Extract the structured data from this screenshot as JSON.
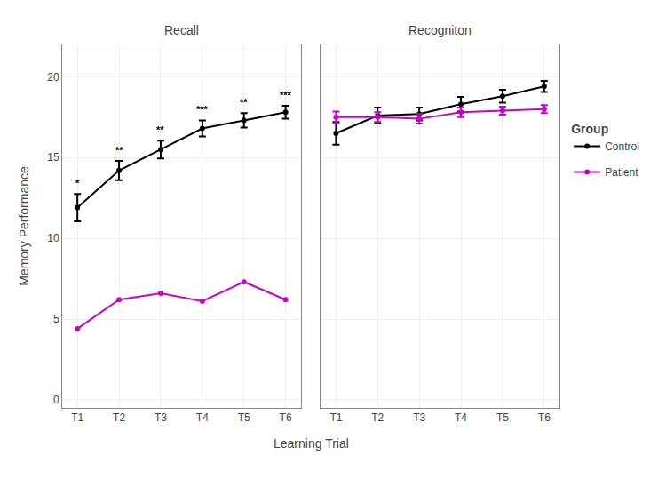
{
  "chart_data": [
    {
      "type": "line",
      "title": "Recall",
      "categories": [
        "T1",
        "T2",
        "T3",
        "T4",
        "T5",
        "T6"
      ],
      "series": [
        {
          "name": "Control",
          "color": "#000000",
          "values": [
            11.9,
            14.2,
            15.5,
            16.8,
            17.3,
            17.8
          ],
          "error": [
            0.85,
            0.6,
            0.55,
            0.5,
            0.45,
            0.4
          ]
        },
        {
          "name": "Patient",
          "color": "#CC00CC",
          "values": [
            4.4,
            6.2,
            6.6,
            6.1,
            7.3,
            6.2
          ]
        }
      ],
      "annotations": [
        {
          "x": "T1",
          "text": "*"
        },
        {
          "x": "T2",
          "text": "**"
        },
        {
          "x": "T3",
          "text": "**"
        },
        {
          "x": "T4",
          "text": "***"
        },
        {
          "x": "T5",
          "text": "**"
        },
        {
          "x": "T6",
          "text": "***"
        }
      ],
      "ylim": [
        -0.5,
        22
      ],
      "yticks": [
        0,
        5,
        10,
        15,
        20
      ],
      "ylabel": "Memory Performance",
      "xlabel": "Learning Trial",
      "grid": true,
      "marker": "circle",
      "legend": "right",
      "legend_title": "Group"
    },
    {
      "type": "line",
      "title": "Recogniton",
      "categories": [
        "T1",
        "T2",
        "T3",
        "T4",
        "T5",
        "T6"
      ],
      "series": [
        {
          "name": "Control",
          "color": "#000000",
          "values": [
            16.5,
            17.6,
            17.7,
            18.3,
            18.8,
            19.4
          ],
          "error": [
            0.7,
            0.5,
            0.4,
            0.45,
            0.4,
            0.35
          ]
        },
        {
          "name": "Patient",
          "color": "#CC00CC",
          "values": [
            17.5,
            17.5,
            17.4,
            17.8,
            17.9,
            18.0
          ],
          "error": [
            0.35,
            0.3,
            0.3,
            0.3,
            0.25,
            0.25
          ]
        }
      ],
      "ylim": [
        -0.5,
        22
      ],
      "yticks": [
        0,
        5,
        10,
        15,
        20
      ],
      "grid": true,
      "marker": "circle"
    }
  ]
}
